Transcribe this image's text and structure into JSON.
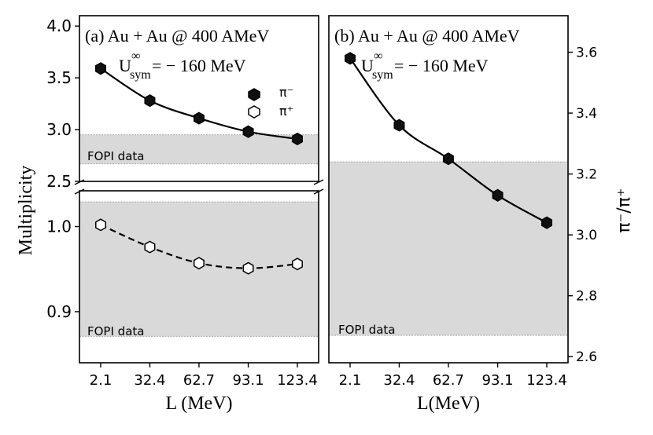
{
  "chart_data": [
    {
      "type": "line",
      "panel": "a",
      "title": "(a) Au + Au @ 400 AMeV",
      "annotation": {
        "base": "U",
        "sup": "∞",
        "sub": "sym",
        "rest": " = − 160 MeV"
      },
      "xlabel": "L (MeV)",
      "ylabel": "Multiplicity",
      "categories": [
        "2.1",
        "32.4",
        "62.7",
        "93.1",
        "123.4"
      ],
      "x": [
        2.1,
        32.4,
        62.7,
        93.1,
        123.4
      ],
      "xlim": [
        -11,
        136.5
      ],
      "broken_axis": true,
      "upper": {
        "ylim": [
          2.5,
          4.1
        ],
        "yticks": [
          "2.5",
          "3.0",
          "3.5",
          "4.0"
        ],
        "band": [
          2.67,
          2.95
        ],
        "band_label": "FOPI data"
      },
      "lower": {
        "ylim": [
          0.84,
          1.042
        ],
        "yticks": [
          "0.9",
          "1.0"
        ],
        "band": [
          0.871,
          1.029
        ],
        "band_label": "FOPI data"
      },
      "legend": {
        "placement": "right",
        "entries": [
          "π⁻",
          "π⁺"
        ]
      },
      "series": [
        {
          "name": "π⁻",
          "axis": "upper",
          "marker": "filled-hexagon",
          "line": "solid",
          "values": [
            3.59,
            3.28,
            3.11,
            2.98,
            2.91
          ]
        },
        {
          "name": "π⁺",
          "axis": "lower",
          "marker": "open-hexagon",
          "line": "dashed",
          "values": [
            1.002,
            0.976,
            0.957,
            0.951,
            0.956
          ]
        }
      ]
    },
    {
      "type": "line",
      "panel": "b",
      "title": "(b) Au + Au @ 400 AMeV",
      "annotation": {
        "base": "U",
        "sup": "∞",
        "sub": "sym",
        "rest": " = − 160 MeV"
      },
      "xlabel": "L(MeV)",
      "ylabel": "π⁻/π⁺",
      "categories": [
        "2.1",
        "32.4",
        "62.7",
        "93.1",
        "123.4"
      ],
      "x": [
        2.1,
        32.4,
        62.7,
        93.1,
        123.4
      ],
      "xlim": [
        -11,
        136.5
      ],
      "ylim": [
        2.58,
        3.72
      ],
      "yticks": [
        "2.6",
        "2.8",
        "3.0",
        "3.2",
        "3.4",
        "3.6"
      ],
      "band": [
        2.67,
        3.24
      ],
      "band_label": "FOPI data",
      "series": [
        {
          "name": "π⁻/π⁺",
          "marker": "filled-hexagon",
          "line": "solid",
          "values": [
            3.58,
            3.36,
            3.25,
            3.13,
            3.04
          ]
        }
      ]
    }
  ]
}
